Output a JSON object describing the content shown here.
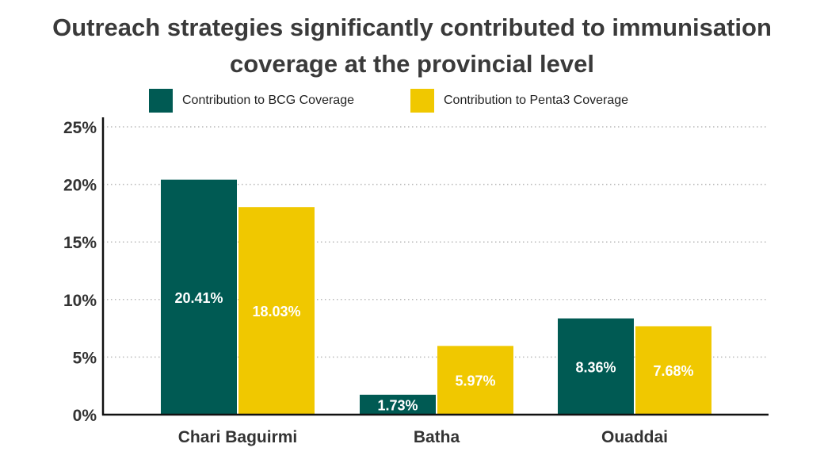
{
  "chart_data": {
    "type": "bar",
    "title": "Outreach strategies significantly contributed to immunisation coverage at the provincial level",
    "title_lines": [
      "Outreach strategies significantly contributed to immunisation",
      "coverage at the provincial level"
    ],
    "categories": [
      "Chari Baguirmi",
      "Batha",
      "Ouaddai"
    ],
    "series": [
      {
        "name": "Contribution to BCG Coverage",
        "color": "#005a53",
        "values": [
          20.41,
          1.73,
          8.36
        ],
        "labels": [
          "20.41%",
          "1.73%",
          "8.36%"
        ]
      },
      {
        "name": "Contribution to Penta3 Coverage",
        "color": "#f0c800",
        "values": [
          18.03,
          5.97,
          7.68
        ],
        "labels": [
          "18.03%",
          "5.97%",
          "7.68%"
        ]
      }
    ],
    "ylim": [
      0,
      25
    ],
    "yticks": [
      0,
      5,
      10,
      15,
      20,
      25
    ],
    "ytick_labels": [
      "0%",
      "5%",
      "10%",
      "15%",
      "20%",
      "25%"
    ],
    "grid": true,
    "legend_position": "top"
  }
}
